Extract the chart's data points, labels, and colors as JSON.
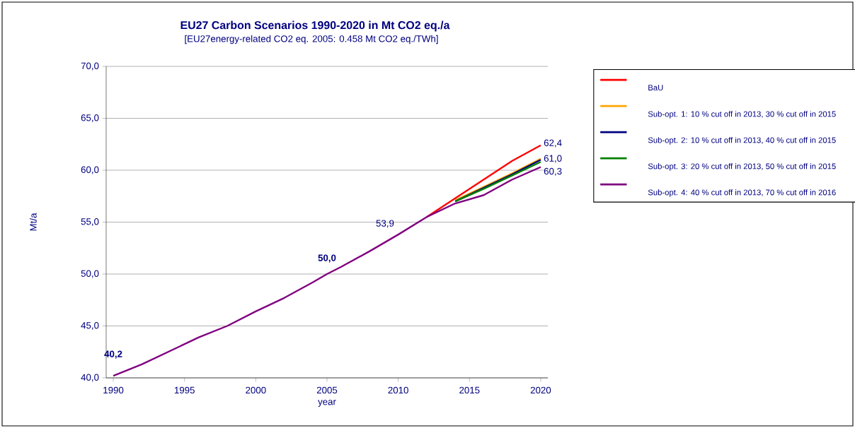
{
  "chart_data": {
    "type": "line",
    "title": "EU27 Carbon Scenarios 1990-2020 in Mt CO2 eq./a",
    "subtitle": "[EU27energy-related CO2 eq. 2005: 0.458 Mt CO2 eq./TWh]",
    "xlabel": "year",
    "ylabel": "Mt/a",
    "x": [
      1990,
      1992,
      1994,
      1996,
      1998,
      2000,
      2002,
      2004,
      2005,
      2006,
      2008,
      2010,
      2012,
      2014,
      2016,
      2018,
      2020
    ],
    "series": [
      {
        "name": "BaU",
        "color": "#ff0000",
        "values": [
          null,
          null,
          null,
          null,
          null,
          null,
          null,
          null,
          null,
          null,
          null,
          null,
          55.5,
          57.3,
          59.1,
          60.9,
          62.4
        ]
      },
      {
        "name": "Sub-opt. 1: 10 % cut off in 2013, 30 % cut off in 2015",
        "color": "#ffa500",
        "values": [
          null,
          null,
          null,
          null,
          null,
          null,
          null,
          null,
          null,
          null,
          null,
          null,
          null,
          57.1,
          58.4,
          59.7,
          61.1
        ]
      },
      {
        "name": "Sub-opt. 2: 10 % cut off in 2013, 40 % cut off in 2015",
        "color": "#000080",
        "values": [
          null,
          null,
          null,
          null,
          null,
          null,
          null,
          null,
          null,
          null,
          null,
          null,
          null,
          57.0,
          58.3,
          59.6,
          61.0
        ]
      },
      {
        "name": "Sub-opt. 3: 20 % cut off in 2013, 50 % cut off in 2015",
        "color": "#008000",
        "values": [
          null,
          null,
          null,
          null,
          null,
          null,
          null,
          null,
          null,
          null,
          null,
          null,
          null,
          57.0,
          58.2,
          59.5,
          60.8
        ]
      },
      {
        "name": "Sub-opt. 4: 40 % cut off in 2013, 70 % cut off in 2016",
        "color": "#800080",
        "values": [
          40.2,
          41.3,
          42.6,
          43.9,
          45.0,
          46.4,
          47.7,
          49.2,
          50.0,
          50.7,
          52.2,
          53.8,
          55.5,
          56.8,
          57.6,
          59.1,
          60.3
        ]
      }
    ],
    "annotations": [
      {
        "text": "40,2",
        "x": 1990,
        "y": 40.2
      },
      {
        "text": "50,0",
        "x": 2005,
        "y": 50.0
      },
      {
        "text": "53,9",
        "x": 2010,
        "y": 53.9
      },
      {
        "text": "62,4",
        "x": 2020,
        "y": 62.4
      },
      {
        "text": "61,0",
        "x": 2020,
        "y": 61.0
      },
      {
        "text": "60,3",
        "x": 2020,
        "y": 60.3
      }
    ],
    "xlim": [
      1989.5,
      2020.5
    ],
    "xticks": [
      1990,
      1995,
      2000,
      2005,
      2010,
      2015,
      2020
    ],
    "ylim": [
      40,
      70
    ],
    "yticks": [
      {
        "value": 40,
        "label": "40,0"
      },
      {
        "value": 45,
        "label": "45,0"
      },
      {
        "value": 50,
        "label": "50,0"
      },
      {
        "value": 55,
        "label": "55,0"
      },
      {
        "value": 60,
        "label": "60,0"
      },
      {
        "value": 65,
        "label": "65,0"
      },
      {
        "value": 70,
        "label": "70,0"
      }
    ],
    "grid": "y",
    "legend": "right",
    "marker": "none",
    "line_style": "solid"
  }
}
